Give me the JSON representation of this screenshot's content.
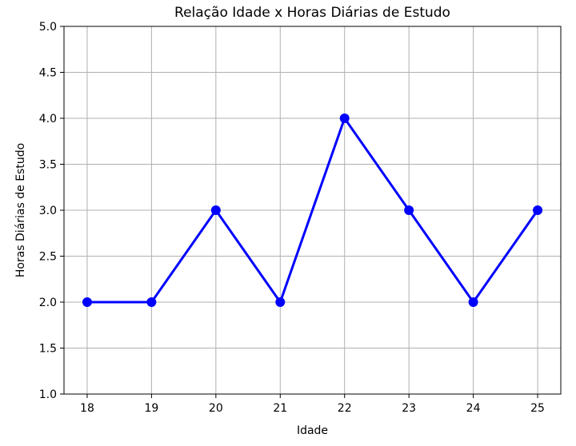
{
  "chart_data": {
    "type": "line",
    "title": "Relação Idade x Horas Diárias de Estudo",
    "xlabel": "Idade",
    "ylabel": "Horas Diárias de Estudo",
    "x": [
      18,
      19,
      20,
      21,
      22,
      23,
      24,
      25
    ],
    "series": [
      {
        "values": [
          2.0,
          2.0,
          3.0,
          2.0,
          4.0,
          3.0,
          2.0,
          3.0
        ],
        "color": "#0000ff",
        "marker": "circle"
      }
    ],
    "xlim": [
      17.64,
      25.36
    ],
    "ylim": [
      1.0,
      5.0
    ],
    "xticks": [
      "18",
      "19",
      "20",
      "21",
      "22",
      "23",
      "24",
      "25"
    ],
    "yticks": [
      "1.0",
      "1.5",
      "2.0",
      "2.5",
      "3.0",
      "3.5",
      "4.0",
      "4.5",
      "5.0"
    ],
    "grid": true
  }
}
